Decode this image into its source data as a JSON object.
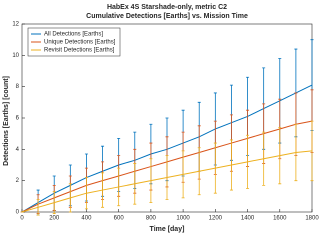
{
  "chart_data": {
    "type": "line",
    "title": "HabEx 4S Starshade-only, metric C2",
    "subtitle": "Cumulative Detections [Earths] vs. Mission Time",
    "x_label": "Time [day]",
    "y_label": "Detections [Earths] [count]",
    "x": [
      0,
      100,
      200,
      300,
      400,
      500,
      600,
      700,
      800,
      900,
      1000,
      1100,
      1200,
      1300,
      1400,
      1500,
      1600,
      1700,
      1800
    ],
    "series": [
      {
        "name": "All Detections [Earths]",
        "color": "#0072bd",
        "values": [
          0,
          0.6,
          1.2,
          1.7,
          2.2,
          2.6,
          3.0,
          3.3,
          3.7,
          4.0,
          4.4,
          4.8,
          5.3,
          5.7,
          6.1,
          6.6,
          7.1,
          7.6,
          8.1
        ],
        "errors": [
          0,
          0.8,
          1.1,
          1.3,
          1.5,
          1.6,
          1.7,
          1.8,
          1.9,
          2.0,
          2.1,
          2.2,
          2.3,
          2.4,
          2.5,
          2.6,
          2.7,
          2.8,
          2.9
        ]
      },
      {
        "name": "Unique Detections [Earths]",
        "color": "#d95319",
        "values": [
          0,
          0.5,
          0.9,
          1.3,
          1.7,
          2.0,
          2.3,
          2.6,
          2.9,
          3.2,
          3.5,
          3.8,
          4.1,
          4.4,
          4.7,
          5.0,
          5.3,
          5.6,
          5.8
        ],
        "errors": [
          0,
          0.6,
          0.8,
          1.0,
          1.1,
          1.2,
          1.3,
          1.4,
          1.5,
          1.6,
          1.6,
          1.7,
          1.7,
          1.8,
          1.8,
          1.9,
          1.9,
          2.0,
          2.0
        ]
      },
      {
        "name": "Revisit Detections [Earths]",
        "color": "#edb120",
        "values": [
          0,
          0.3,
          0.6,
          0.9,
          1.2,
          1.4,
          1.6,
          1.8,
          2.0,
          2.2,
          2.4,
          2.6,
          2.8,
          3.0,
          3.2,
          3.4,
          3.6,
          3.8,
          3.9
        ],
        "errors": [
          0,
          0.5,
          0.7,
          0.9,
          1.0,
          1.1,
          1.2,
          1.3,
          1.4,
          1.4,
          1.5,
          1.5,
          1.6,
          1.6,
          1.7,
          1.7,
          1.8,
          1.8,
          1.9
        ]
      }
    ],
    "xlim": [
      0,
      1800
    ],
    "xticks": [
      0,
      200,
      400,
      600,
      800,
      1000,
      1200,
      1400,
      1600,
      1800
    ],
    "ylim": [
      0,
      12
    ],
    "yticks": [
      0,
      2,
      4,
      6,
      8,
      10,
      12
    ],
    "legend": "top-left"
  }
}
